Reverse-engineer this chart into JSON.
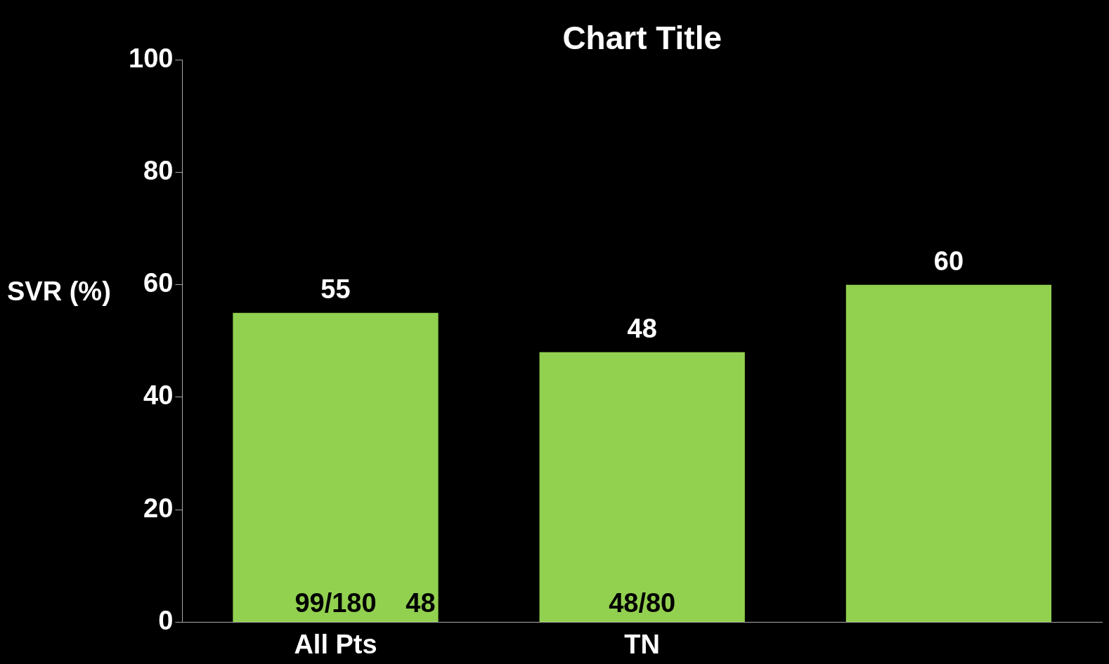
{
  "chart_data": {
    "type": "bar",
    "title": "Chart Title",
    "ylabel": "SVR (%)",
    "categories": [
      "All Pts",
      "TN",
      null
    ],
    "values": [
      55,
      48,
      60
    ],
    "color": "#92d050",
    "data_labels": true,
    "ylim": [
      0,
      100
    ],
    "yticks": [
      0,
      20,
      40,
      60,
      80,
      100
    ],
    "grid": false,
    "legend": false,
    "annotations": [
      "99/180",
      "48",
      "48/80"
    ]
  }
}
